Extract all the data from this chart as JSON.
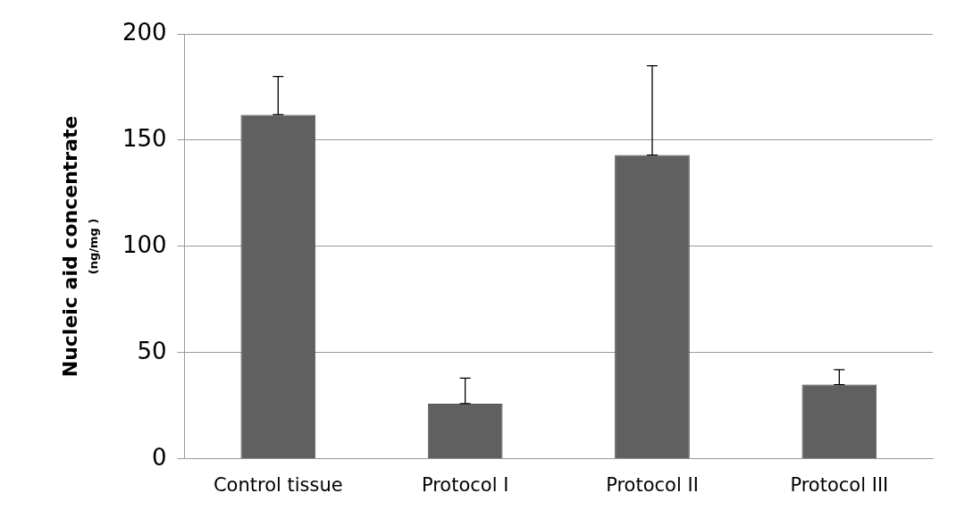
{
  "chart_data": {
    "type": "bar",
    "ylabel": "Nucleic aid concentrate\n(ng/mg )",
    "categories": [
      "Control tissue",
      "Protocol I",
      "Protocol II",
      "Protocol III"
    ],
    "values": [
      162,
      26,
      143,
      35
    ],
    "errors": [
      [
        162,
        180
      ],
      [
        26,
        38
      ],
      [
        143,
        185
      ],
      [
        35,
        42
      ]
    ],
    "color": "#606060",
    "ylim": [
      0,
      200
    ],
    "yticks": [
      0,
      50,
      100,
      150,
      200
    ],
    "grid": "y"
  }
}
